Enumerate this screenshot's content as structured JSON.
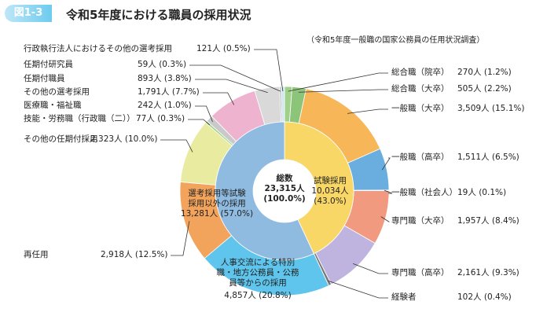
{
  "chart_data": {
    "type": "nested-donut",
    "figure_label": "図1-3",
    "title": "令和5年度における職員の採用状況",
    "note": "（令和5年度一般職の国家公務員の任用状況調査）",
    "center": {
      "label": "総数",
      "value": 23315,
      "value_label": "23,315人 (100.0%)"
    },
    "inner": {
      "categories": [
        "試験採用",
        "選考採用等試験採用以外の採用"
      ],
      "values": [
        10034,
        13281
      ],
      "value_labels": [
        "10,034人 (43.0%)",
        "13,281人 (57.0%)"
      ],
      "colors": [
        "#f8d766",
        "#8fbbe0"
      ]
    },
    "outer": {
      "categories": [
        "総合職（院卒）",
        "総合職（大卒）",
        "一般職（大卒）",
        "一般職（高卒）",
        "一般職（社会人）",
        "専門職（大卒）",
        "専門職（高卒）",
        "経験者",
        "人事交流による特別職・地方公務員・公務員等からの採用",
        "再任用",
        "その他の任期付採用",
        "技能・労務職（行政職（二））",
        "医療職・福祉職",
        "その他の選考採用",
        "任期付職員",
        "任期付研究員",
        "行政執行法人におけるその他の選考採用"
      ],
      "values": [
        270,
        505,
        3509,
        1511,
        19,
        1957,
        2161,
        102,
        4857,
        2918,
        2323,
        77,
        242,
        1791,
        893,
        59,
        121
      ],
      "value_labels": [
        "270人 (1.2%)",
        "505人 (2.2%)",
        "3,509人 (15.1%)",
        "1,511人 (6.5%)",
        "19人 (0.1%)",
        "1,957人 (8.4%)",
        "2,161人 (9.3%)",
        "102人 (0.4%)",
        "4,857人 (20.8%)",
        "2,918人 (12.5%)",
        "2,323人 (10.0%)",
        "77人 (0.3%)",
        "242人 (1.0%)",
        "1,791人 (7.7%)",
        "893人 (3.8%)",
        "59人 (0.3%)",
        "121人 (0.5%)"
      ],
      "colors": [
        "#9fd18a",
        "#8cc47a",
        "#f7b657",
        "#6aaee0",
        "#9aa0a6",
        "#f29a80",
        "#bfb3e0",
        "#7a7a7a",
        "#5fc5ec",
        "#f3a45c",
        "#e9eca0",
        "#9fd18a",
        "#c9c9c9",
        "#eeb3cf",
        "#d9d9d9",
        "#b0b0b0",
        "#cfe6f2"
      ]
    }
  }
}
